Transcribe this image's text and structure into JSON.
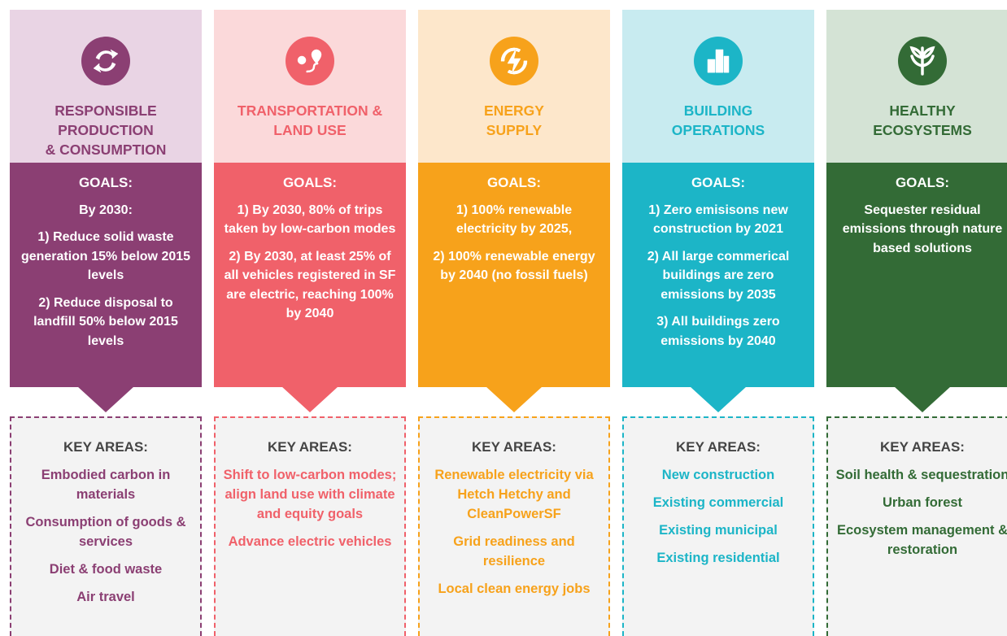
{
  "columns": [
    {
      "title_lines": [
        "RESPONSIBLE",
        "PRODUCTION",
        "& CONSUMPTION"
      ],
      "accent": "#8b3f73",
      "light": "#e9d4e4",
      "goals_heading": "GOALS:",
      "goals": [
        "By 2030:",
        "1) Reduce solid waste generation 15% below 2015 levels",
        "2) Reduce disposal to landfill 50% below 2015 levels"
      ],
      "key_heading": "KEY AREAS:",
      "key_areas": [
        "Embodied carbon in materials",
        "Consumption of goods & services",
        "Diet & food waste",
        "Air travel"
      ]
    },
    {
      "title_lines": [
        "TRANSPORTATION &",
        "LAND USE"
      ],
      "accent": "#f0616a",
      "light": "#fbd9da",
      "goals_heading": "GOALS:",
      "goals": [
        "1) By 2030, 80% of trips taken by low-carbon modes",
        "2) By 2030, at least 25% of all vehicles registered in SF are electric, reaching 100% by 2040"
      ],
      "key_heading": "KEY AREAS:",
      "key_areas": [
        "Shift to low-carbon modes; align land use with climate and equity goals",
        "Advance electric vehicles"
      ]
    },
    {
      "title_lines": [
        "ENERGY",
        "SUPPLY"
      ],
      "accent": "#f7a21b",
      "light": "#fde7cb",
      "goals_heading": "GOALS:",
      "goals": [
        "1) 100% renewable electricity by 2025,",
        "2) 100% renewable energy by 2040 (no fossil fuels)"
      ],
      "key_heading": "KEY AREAS:",
      "key_areas": [
        "Renewable electricity via Hetch Hetchy and CleanPowerSF",
        "Grid readiness and resilience",
        "Local clean energy jobs"
      ]
    },
    {
      "title_lines": [
        "BUILDING",
        "OPERATIONS"
      ],
      "accent": "#1cb5c7",
      "light": "#c8ebf0",
      "goals_heading": "GOALS:",
      "goals": [
        "1) Zero emisisons new construction by 2021",
        "2) All large commerical buildings are zero emissions by 2035",
        "3) All buildings zero emissions by 2040"
      ],
      "key_heading": "KEY AREAS:",
      "key_areas": [
        "New construction",
        "Existing commercial",
        "Existing municipal",
        "Existing residential"
      ]
    },
    {
      "title_lines": [
        "HEALTHY",
        "ECOSYSTEMS"
      ],
      "accent": "#336b36",
      "light": "#d4e3d5",
      "goals_heading": "GOALS:",
      "goals": [
        "Sequester residual emissions through nature based solutions"
      ],
      "key_heading": "KEY AREAS:",
      "key_areas": [
        "Soil health & sequestration",
        "Urban forest",
        "Ecosystem management & restoration"
      ]
    }
  ]
}
